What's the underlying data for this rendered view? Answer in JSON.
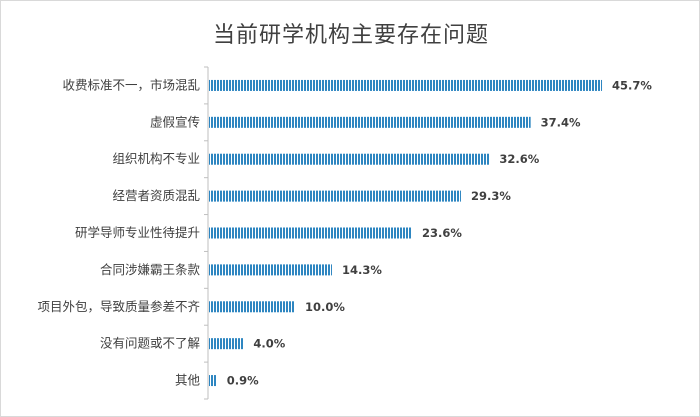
{
  "chart_data": {
    "type": "bar",
    "orientation": "horizontal",
    "title": "当前研学机构主要存在问题",
    "categories": [
      "收费标准不一，市场混乱",
      "虚假宣传",
      "组织机构不专业",
      "经营者资质混乱",
      "研学导师专业性待提升",
      "合同涉嫌霸王条款",
      "项目外包，导致质量参差不齐",
      "没有问题或不了解",
      "其他"
    ],
    "values": [
      45.7,
      37.4,
      32.6,
      29.3,
      23.6,
      14.3,
      10.0,
      4.0,
      0.9
    ],
    "value_labels": [
      "45.7%",
      "37.4%",
      "32.6%",
      "29.3%",
      "23.6%",
      "14.3%",
      "10.0%",
      "4.0%",
      "0.9%"
    ],
    "xlim": [
      0,
      50
    ],
    "grid": false,
    "legend": "none",
    "bar_color": "#2e86c1",
    "bar_pattern": "vertical-stripes"
  }
}
